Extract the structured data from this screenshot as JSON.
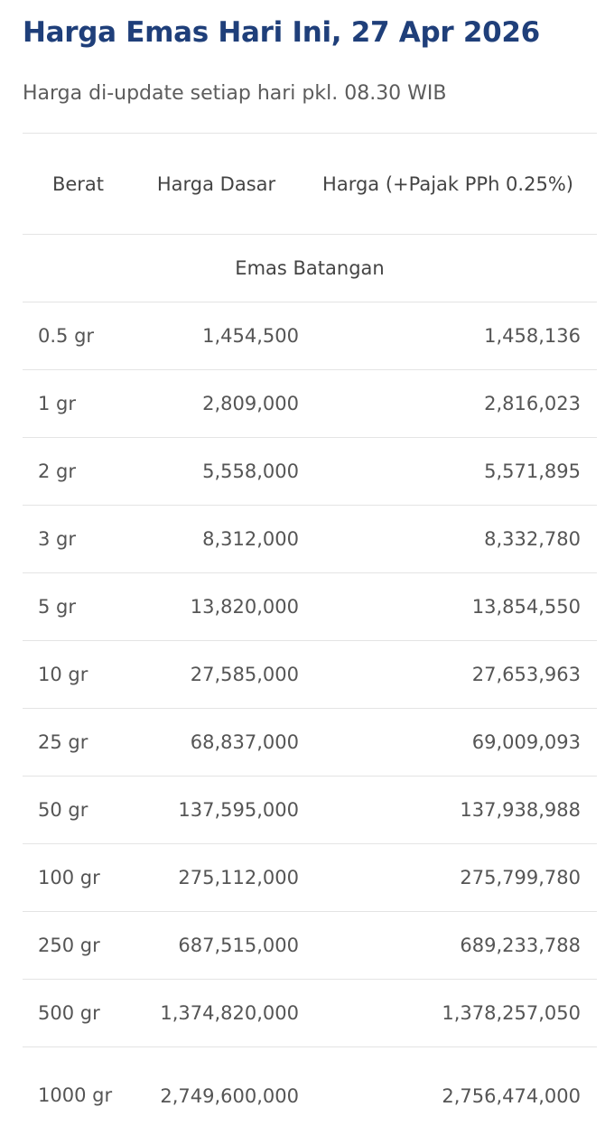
{
  "page": {
    "title": "Harga Emas Hari Ini, 27 Apr 2026",
    "subtitle": "Harga di-update setiap hari pkl. 08.30 WIB"
  },
  "table": {
    "headers": {
      "berat": "Berat",
      "harga_dasar": "Harga Dasar",
      "harga_pajak": "Harga (+Pajak PPh 0.25%)"
    },
    "section": "Emas Batangan",
    "rows": [
      {
        "berat": "0.5 gr",
        "dasar": "1,454,500",
        "pajak": "1,458,136"
      },
      {
        "berat": "1 gr",
        "dasar": "2,809,000",
        "pajak": "2,816,023"
      },
      {
        "berat": "2 gr",
        "dasar": "5,558,000",
        "pajak": "5,571,895"
      },
      {
        "berat": "3 gr",
        "dasar": "8,312,000",
        "pajak": "8,332,780"
      },
      {
        "berat": "5 gr",
        "dasar": "13,820,000",
        "pajak": "13,854,550"
      },
      {
        "berat": "10 gr",
        "dasar": "27,585,000",
        "pajak": "27,653,963"
      },
      {
        "berat": "25 gr",
        "dasar": "68,837,000",
        "pajak": "69,009,093"
      },
      {
        "berat": "50 gr",
        "dasar": "137,595,000",
        "pajak": "137,938,988"
      },
      {
        "berat": "100 gr",
        "dasar": "275,112,000",
        "pajak": "275,799,780"
      },
      {
        "berat": "250 gr",
        "dasar": "687,515,000",
        "pajak": "689,233,788"
      },
      {
        "berat": "500 gr",
        "dasar": "1,374,820,000",
        "pajak": "1,378,257,050"
      },
      {
        "berat": "1000 gr",
        "dasar": "2,749,600,000",
        "pajak": "2,756,474,000"
      }
    ]
  },
  "colors": {
    "title": "#1f3f7a",
    "text": "#555555",
    "divider": "#e4e4e4"
  }
}
